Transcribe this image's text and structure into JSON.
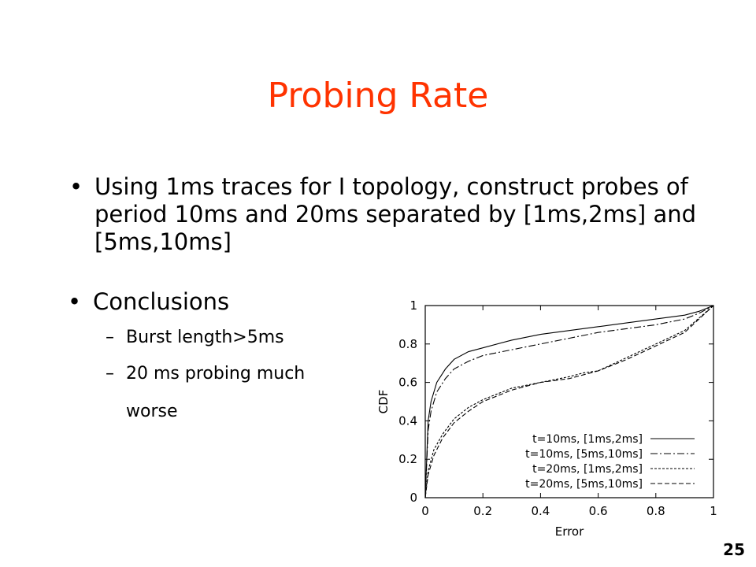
{
  "slide": {
    "title": "Probing Rate",
    "bullet1": "Using 1ms traces for I topology, construct probes of period 10ms and 20ms separated by [1ms,2ms] and [5ms,10ms]",
    "bullet2": "Conclusions",
    "sub1": "Burst length>5ms",
    "sub2_line1": "20 ms probing much",
    "sub2_line2": "worse",
    "page_number": "25",
    "title_color": "#ff3300"
  },
  "chart_data": {
    "type": "line",
    "title": "",
    "xlabel": "Error",
    "ylabel": "CDF",
    "xlim": [
      0,
      1
    ],
    "ylim": [
      0,
      1
    ],
    "xticks": [
      "0",
      "0.2",
      "0.4",
      "0.6",
      "0.8",
      "1"
    ],
    "yticks": [
      "0",
      "0.2",
      "0.4",
      "0.6",
      "0.8",
      "1"
    ],
    "legend_position": "bottom-right",
    "series": [
      {
        "name": "t=10ms, [1ms,2ms]",
        "dash": "solid",
        "x": [
          0,
          0.01,
          0.02,
          0.04,
          0.07,
          0.1,
          0.15,
          0.2,
          0.3,
          0.4,
          0.5,
          0.6,
          0.7,
          0.8,
          0.9,
          0.95,
          1
        ],
        "y": [
          0,
          0.4,
          0.5,
          0.6,
          0.67,
          0.72,
          0.76,
          0.78,
          0.82,
          0.85,
          0.87,
          0.89,
          0.91,
          0.93,
          0.95,
          0.97,
          1
        ]
      },
      {
        "name": "t=10ms, [5ms,10ms]",
        "dash": "dashdot",
        "x": [
          0,
          0.01,
          0.02,
          0.04,
          0.07,
          0.1,
          0.15,
          0.2,
          0.3,
          0.4,
          0.5,
          0.6,
          0.7,
          0.8,
          0.9,
          0.95,
          1
        ],
        "y": [
          0,
          0.35,
          0.45,
          0.55,
          0.62,
          0.67,
          0.71,
          0.74,
          0.77,
          0.8,
          0.83,
          0.86,
          0.88,
          0.9,
          0.93,
          0.96,
          1
        ]
      },
      {
        "name": "t=20ms, [1ms,2ms]",
        "dash": "dotted",
        "x": [
          0,
          0.01,
          0.03,
          0.06,
          0.1,
          0.15,
          0.2,
          0.3,
          0.4,
          0.5,
          0.55,
          0.6,
          0.7,
          0.8,
          0.9,
          1
        ],
        "y": [
          0,
          0.14,
          0.25,
          0.33,
          0.41,
          0.47,
          0.51,
          0.57,
          0.6,
          0.63,
          0.65,
          0.66,
          0.73,
          0.8,
          0.87,
          1
        ]
      },
      {
        "name": "t=20ms, [5ms,10ms]",
        "dash": "dashed",
        "x": [
          0,
          0.01,
          0.03,
          0.06,
          0.1,
          0.15,
          0.2,
          0.3,
          0.4,
          0.5,
          0.55,
          0.6,
          0.7,
          0.8,
          0.9,
          1
        ],
        "y": [
          0,
          0.12,
          0.22,
          0.31,
          0.39,
          0.45,
          0.5,
          0.56,
          0.6,
          0.62,
          0.64,
          0.66,
          0.72,
          0.79,
          0.86,
          1
        ]
      }
    ]
  }
}
